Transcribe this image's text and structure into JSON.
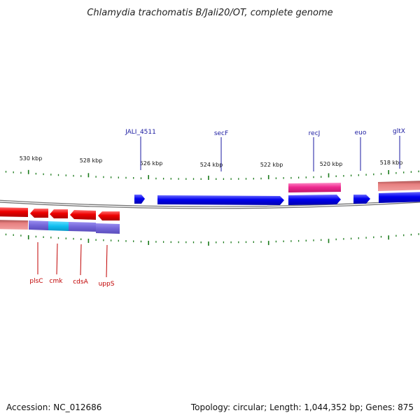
{
  "title": "Chlamydia trachomatis B/Jali20/OT, complete genome",
  "footer": {
    "accession": "Accession: NC_012686",
    "summary": "Topology: circular; Length: 1,044,352 bp; Genes: 875"
  },
  "ruler": {
    "labels": [
      "530 kbp",
      "528 kbp",
      "526 kbp",
      "524 kbp",
      "522 kbp",
      "520 kbp",
      "518 kbp"
    ]
  },
  "genes_top": [
    {
      "label": "JALI_4511"
    },
    {
      "label": "secF"
    },
    {
      "label": "recJ"
    },
    {
      "label": "euo"
    },
    {
      "label": "gltX"
    }
  ],
  "genes_bottom": [
    {
      "label": "plsC"
    },
    {
      "label": "cmk"
    },
    {
      "label": "cdsA"
    },
    {
      "label": "uppS"
    }
  ],
  "colors": {
    "cds_forward": "#0000ee",
    "cds_reverse": "#ee0000",
    "cog_pink": "#ee2a90",
    "cog_salmon": "#e78080",
    "cog_purple": "#7466d8",
    "cog_cyan": "#10bff0",
    "tick": "#1a7a1a",
    "label_top": "#1a1aa0",
    "label_bottom": "#c00000"
  }
}
